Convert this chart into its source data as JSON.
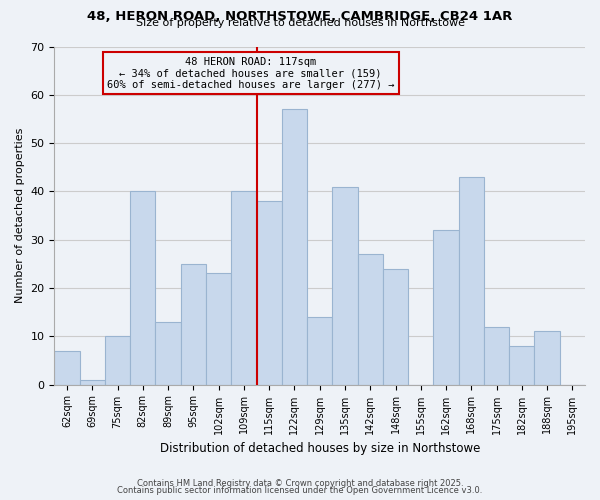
{
  "title1": "48, HERON ROAD, NORTHSTOWE, CAMBRIDGE, CB24 1AR",
  "title2": "Size of property relative to detached houses in Northstowe",
  "xlabel": "Distribution of detached houses by size in Northstowe",
  "ylabel": "Number of detached properties",
  "categories": [
    "62sqm",
    "69sqm",
    "75sqm",
    "82sqm",
    "89sqm",
    "95sqm",
    "102sqm",
    "109sqm",
    "115sqm",
    "122sqm",
    "129sqm",
    "135sqm",
    "142sqm",
    "148sqm",
    "155sqm",
    "162sqm",
    "168sqm",
    "175sqm",
    "182sqm",
    "188sqm",
    "195sqm"
  ],
  "values": [
    7,
    1,
    10,
    40,
    13,
    25,
    23,
    40,
    38,
    57,
    14,
    41,
    27,
    24,
    0,
    32,
    43,
    12,
    8,
    11,
    0
  ],
  "bar_color": "#c8d8ec",
  "bar_edge_color": "#9ab4d0",
  "grid_color": "#cccccc",
  "vline_color": "#cc0000",
  "annotation_title": "48 HERON ROAD: 117sqm",
  "annotation_line1": "← 34% of detached houses are smaller (159)",
  "annotation_line2": "60% of semi-detached houses are larger (277) →",
  "annotation_box_color": "#cc0000",
  "ylim": [
    0,
    70
  ],
  "yticks": [
    0,
    10,
    20,
    30,
    40,
    50,
    60,
    70
  ],
  "footer1": "Contains HM Land Registry data © Crown copyright and database right 2025.",
  "footer2": "Contains public sector information licensed under the Open Government Licence v3.0.",
  "bg_color": "#eef2f7"
}
